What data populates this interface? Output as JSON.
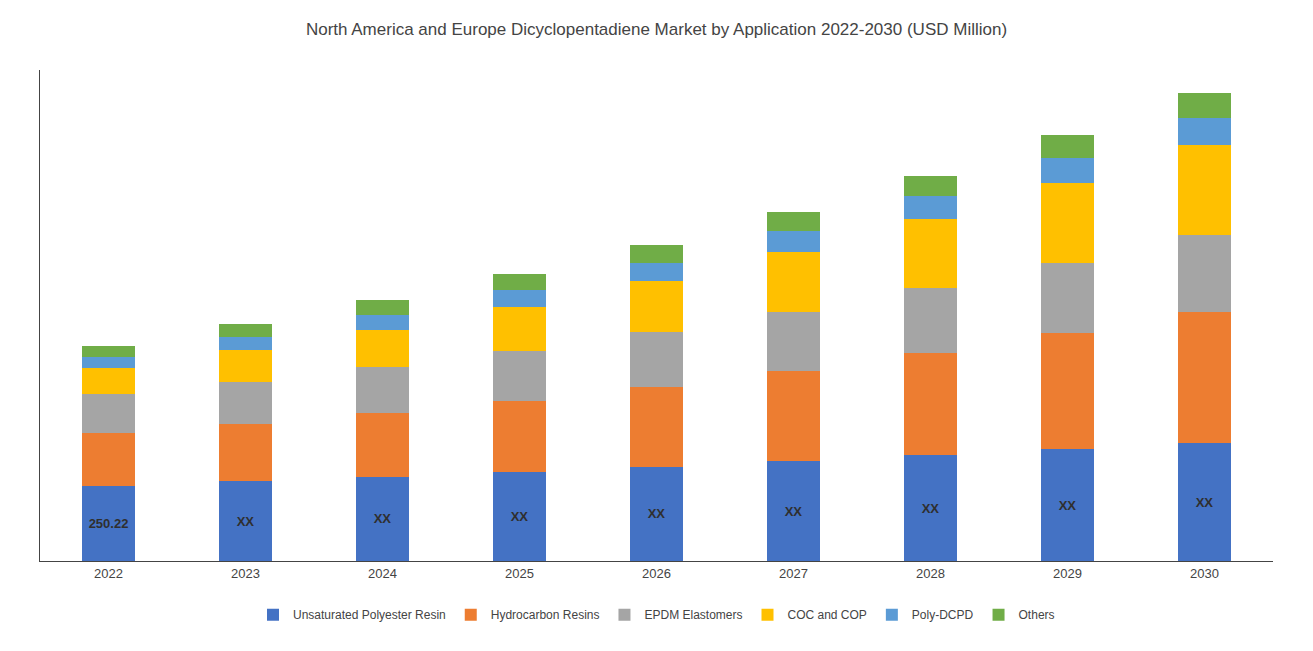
{
  "chart_data": {
    "type": "bar",
    "title": "North America and Europe Dicyclopentadiene Market by Application 2022-2030 (USD Million)",
    "categories": [
      "2022",
      "2023",
      "2024",
      "2025",
      "2026",
      "2027",
      "2028",
      "2029",
      "2030"
    ],
    "series": [
      {
        "name": "Unsaturated Polyester Resin",
        "color": "#4472C4",
        "values": [
          250.22,
          265,
          280,
          296,
          313,
          331,
          350,
          370,
          391
        ],
        "value_labels": [
          "250.22",
          "XX",
          "XX",
          "XX",
          "XX",
          "XX",
          "XX",
          "XX",
          "XX"
        ]
      },
      {
        "name": "Hydrocarbon Resins",
        "color": "#ED7D31",
        "values": [
          175,
          190,
          210,
          235,
          265,
          300,
          340,
          385,
          435
        ]
      },
      {
        "name": "EPDM Elastomers",
        "color": "#A5A5A5",
        "values": [
          130,
          140,
          152,
          165,
          180,
          195,
          215,
          235,
          255
        ]
      },
      {
        "name": "COC and COP",
        "color": "#FFC000",
        "values": [
          85,
          105,
          125,
          148,
          170,
          200,
          230,
          265,
          300
        ]
      },
      {
        "name": "Poly-DCPD",
        "color": "#5B9BD5",
        "values": [
          35,
          42,
          50,
          55,
          62,
          70,
          75,
          82,
          88
        ]
      },
      {
        "name": "Others",
        "color": "#70AD47",
        "values": [
          38,
          45,
          48,
          54,
          58,
          62,
          68,
          75,
          82
        ]
      }
    ],
    "stacked": true,
    "data_labels": true,
    "ylim": [
      0,
      1628.55
    ],
    "grid": false,
    "legend": "bottom",
    "tick_labels": "x"
  }
}
